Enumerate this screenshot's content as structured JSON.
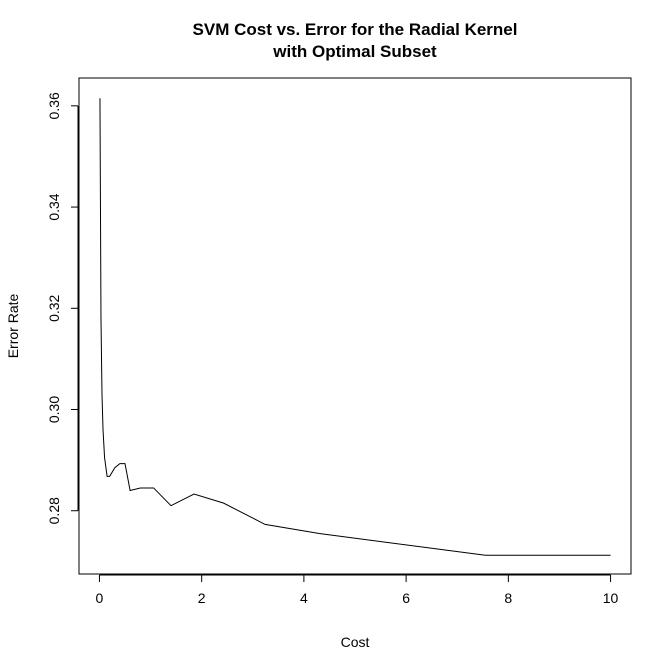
{
  "chart_data": {
    "type": "line",
    "title": [
      "SVM Cost vs. Error for the Radial Kernel",
      "with Optimal Subset"
    ],
    "xlabel": "Cost",
    "ylabel": "Error Rate",
    "xlim": [
      -0.4,
      10.4
    ],
    "ylim": [
      0.2675,
      0.3655
    ],
    "x_ticks": [
      0,
      2,
      4,
      6,
      8,
      10
    ],
    "x_tick_labels": [
      "0",
      "2",
      "4",
      "6",
      "8",
      "10"
    ],
    "y_ticks": [
      0.28,
      0.3,
      0.32,
      0.34,
      0.36
    ],
    "y_tick_labels": [
      "0.28",
      "0.30",
      "0.32",
      "0.34",
      "0.36"
    ],
    "grid": false,
    "series": [
      {
        "color": "#000000",
        "x": [
          0.01,
          0.03,
          0.05,
          0.07,
          0.1,
          0.15,
          0.2,
          0.3,
          0.4,
          0.5,
          0.6,
          0.8,
          1.0,
          1.06,
          1.4,
          1.85,
          2.43,
          3.24,
          4.3,
          7.55,
          10.0
        ],
        "y": [
          0.3615,
          0.318,
          0.303,
          0.296,
          0.2905,
          0.2868,
          0.2868,
          0.2885,
          0.2893,
          0.2893,
          0.284,
          0.2845,
          0.2845,
          0.2845,
          0.281,
          0.2833,
          0.2815,
          0.2773,
          0.2755,
          0.2712,
          0.2712
        ]
      }
    ]
  }
}
